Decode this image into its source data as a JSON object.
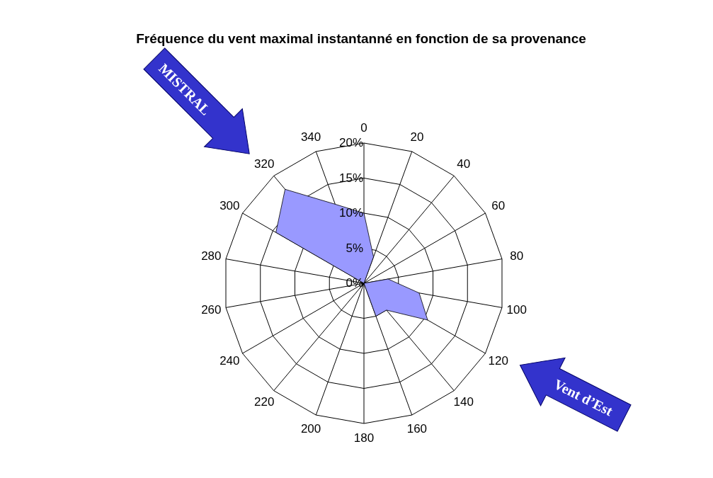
{
  "chart_data": {
    "type": "radar",
    "title": "Fréquence du vent maximal instantanné en fonction de sa provenance",
    "categories": [
      "0",
      "20",
      "40",
      "60",
      "80",
      "100",
      "120",
      "140",
      "160",
      "180",
      "200",
      "220",
      "240",
      "260",
      "280",
      "300",
      "320",
      "340"
    ],
    "series": [
      {
        "color": "#9999ff",
        "values": [
          10,
          4,
          0,
          0,
          3.5,
          8,
          10.5,
          5,
          5,
          0,
          0,
          1,
          0,
          0,
          0,
          14.5,
          17.5,
          12
        ]
      }
    ],
    "ylim": [
      0,
      20
    ],
    "yticks": [
      {
        "value": 0,
        "label": "0%"
      },
      {
        "value": 5,
        "label": "5%"
      },
      {
        "value": 10,
        "label": "10%"
      },
      {
        "value": 15,
        "label": "15%"
      },
      {
        "value": 20,
        "label": "20%"
      }
    ],
    "grid": true,
    "annotations": [
      "MISTRAL",
      "Vent d’Est"
    ]
  }
}
